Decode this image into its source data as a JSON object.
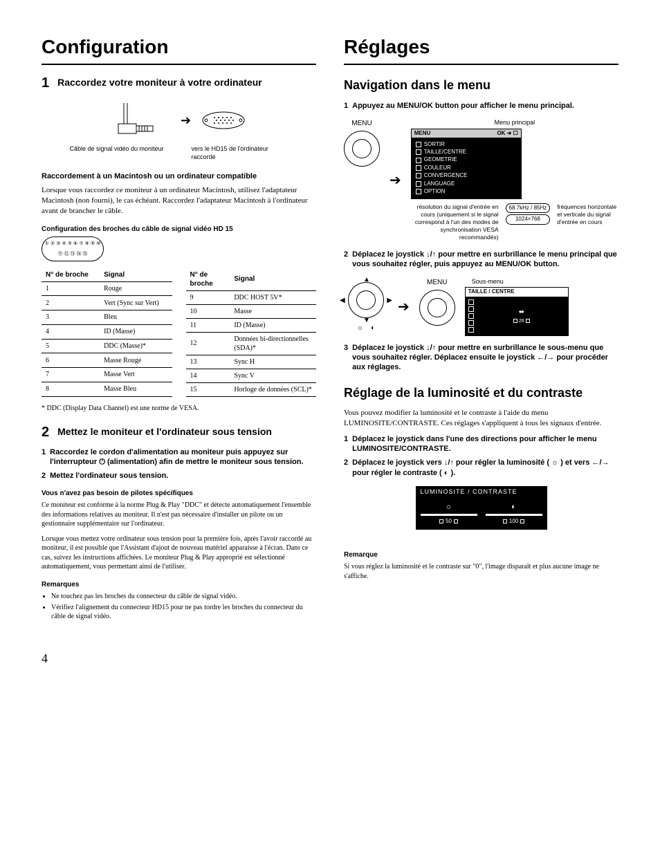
{
  "left": {
    "h1": "Configuration",
    "step1": {
      "num": "1",
      "head": "Raccordez votre moniteur à votre ordinateur",
      "cable_cap_left": "Câble de signal vidéo du moniteur",
      "cable_cap_right": "vers le HD15 de l'ordinateur raccordé",
      "mac_head": "Raccordement à un Macintosh ou un ordinateur compatible",
      "mac_body": "Lorsque vous raccordez ce moniteur à un ordinateur Macintosh, utilisez l'adaptateur Macintosh (non fourni), le cas échéant. Raccordez l'adaptateur Macintosh à l'ordinateur avant de brancher le câble.",
      "pin_head": "Configuration des broches du câble de signal vidéo HD 15",
      "pin_col1": "N° de broche",
      "pin_col2": "Signal",
      "pins_left": [
        [
          "1",
          "Rouge"
        ],
        [
          "2",
          "Vert (Sync sur Vert)"
        ],
        [
          "3",
          "Bleu"
        ],
        [
          "4",
          "ID (Masse)"
        ],
        [
          "5",
          "DDC (Masse)*"
        ],
        [
          "6",
          "Masse Rouge"
        ],
        [
          "7",
          "Masse Vert"
        ],
        [
          "8",
          "Masse Bleu"
        ]
      ],
      "pins_right": [
        [
          "9",
          "DDC HOST 5V*"
        ],
        [
          "10",
          "Masse"
        ],
        [
          "11",
          "ID (Masse)"
        ],
        [
          "12",
          "Données bi-directionnelles (SDA)*"
        ],
        [
          "13",
          "Sync H"
        ],
        [
          "14",
          "Sync V"
        ],
        [
          "15",
          "Horloge de données (SCL)*"
        ]
      ],
      "foot": "* DDC (Display Data Channel) est une norme de VESA."
    },
    "step2": {
      "num": "2",
      "head": "Mettez le moniteur et l'ordinateur sous tension",
      "item1": "Raccordez le cordon d'alimentation au moniteur puis appuyez sur l'interrupteur ⏻ (alimentation) afin de mettre le moniteur sous tension.",
      "item2": "Mettez l'ordinateur sous tension.",
      "nodrv_head": "Vous n'avez pas besoin de pilotes spécifiques",
      "nodrv_body1": "Ce moniteur est conforme à la norme Plug & Play \"DDC\" et détecte automatiquement l'ensemble des informations relatives au moniteur. Il n'est pas nécessaire d'installer un pilote ou un gestionnaire supplémentaire sur l'ordinateur.",
      "nodrv_body2": "Lorsque vous mettez votre ordinateur sous tension pour la première fois, après l'avoir raccordé au moniteur, il est possible que l'Assistant d'ajout de nouveau matériel apparaisse à l'écran. Dans ce cas, suivez les instructions affichées. Le moniteur Plug & Play approprié est sélectionné automatiquement, vous permettant ainsi de l'utiliser.",
      "notes_head": "Remarques",
      "note1": "Ne touchez pas les broches du connecteur du câble de signal vidéo.",
      "note2": "Vérifiez l'alignement du connecteur HD15 pour ne pas tordre les broches du connecteur du câble de signal vidéo."
    }
  },
  "right": {
    "h1": "Réglages",
    "nav_h2": "Navigation dans le menu",
    "nav1": "Appuyez au MENU/OK button pour afficher le menu principal.",
    "menu_label": "MENU",
    "osd_title_top": "Menu principal",
    "osd_bar_left": "MENU",
    "osd_bar_right": "OK ➔ ☐",
    "osd_items": [
      "SORTIR",
      "TAILLE/CENTRE",
      "GEOMETRIE",
      "COULEUR",
      "CONVERGENCE",
      "LANGUAGE",
      "OPTION"
    ],
    "res_cap_left": "résolution du signal d'entrée en cours (uniquement si le signal correspond à l'un des modes de synchronisation VESA recommandés)",
    "res_box_top": "68.7kHz / 85Hz",
    "res_box_bot": "1024×768",
    "res_cap_right": "fréquences horizontale et verticale du signal d'entrée en cours",
    "nav2": "Déplacez le joystick ↓/↑ pour mettre en surbrillance le menu principal que vous souhaitez régler, puis appuyez au MENU/OK button.",
    "sub_title": "Sous-menu",
    "sub_bar": "TAILLE / CENTRE",
    "sub_val": "26",
    "nav3": "Déplacez le joystick ↓/↑ pour mettre en surbrillance le sous-menu que vous souhaitez régler. Déplacez ensuite le joystick ←/→ pour procéder aux réglages.",
    "bc_h2": "Réglage de la luminosité et du contraste",
    "bc_body": "Vous pouvez modifier la luminosité et le contraste à l'aide du menu LUMINOSITE/CONTRASTE. Ces réglages s'appliquent à tous les signaux d'entrée.",
    "bc1": "Déplacez le joystick dans l'une des directions pour afficher le menu LUMINOSITE/CONTRASTE.",
    "bc2": "Déplacez le joystick vers ↓/↑ pour régler la luminosité ( ☼ ) et vers ←/→ pour régler le contraste ( ◐ ).",
    "bc_osd_title": "LUMINOSITE / CONTRASTE",
    "bc_left_val": "50",
    "bc_right_val": "100",
    "note_head": "Remarque",
    "note_body": "Si vous réglez la luminosité et le contraste sur \"0\", l'image disparaît et plus aucune image ne s'affiche."
  },
  "page": "4"
}
